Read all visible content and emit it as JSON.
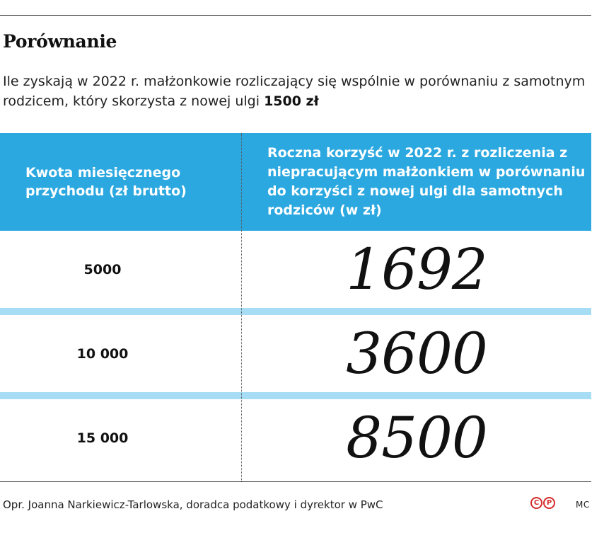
{
  "title": "Porównanie",
  "subtitle": {
    "lead": "Ile zyskają w 2022 r. małżonkowie rozliczający się wspólnie w porównaniu z samotnym rodzicem, który skorzysta z nowej ulgi ",
    "highlight": "1500 zł"
  },
  "table": {
    "headers": [
      "Kwota miesięcznego przychodu (zł brutto)",
      "Roczna korzyść w 2022 r. z rozliczenia z niepracującym małżonkiem w porównaniu do korzyści z nowej ulgi dla samotnych rodziców (w zł)"
    ],
    "rows": [
      {
        "income": "5000",
        "benefit": "1692"
      },
      {
        "income": "10 000",
        "benefit": "3600"
      },
      {
        "income": "15 000",
        "benefit": "8500"
      }
    ]
  },
  "footer": {
    "source": "Opr. Joanna Narkiewicz-Tarlowska, doradca podatkowy i dyrektor w PwC",
    "logo_letters": [
      "C",
      "P"
    ],
    "initials": "MC"
  },
  "colors": {
    "header_bg": "#2ba8e0",
    "row_separator": "#a6dcf4",
    "logo_red": "#d52b2b"
  }
}
